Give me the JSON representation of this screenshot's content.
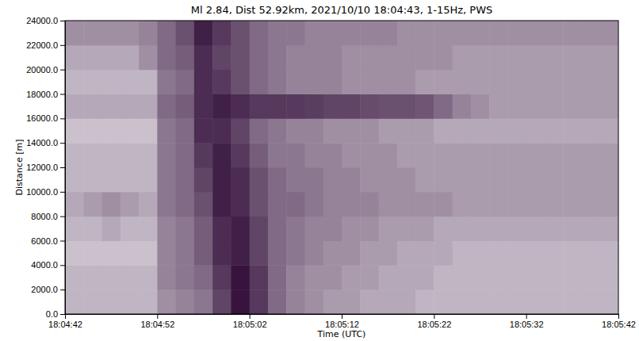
{
  "chart_data": {
    "type": "heatmap",
    "title": "Ml 2.84, Dist 52.92km, 2021/10/10 18:04:43, 1-15Hz, PWS",
    "x_label": "Time (UTC)",
    "y_label": "Distance [m]",
    "xlim": [
      "18:04:42",
      "18:05:42"
    ],
    "xticks": [
      "18:04:42",
      "18:04:52",
      "18:05:02",
      "18:05:12",
      "18:05:22",
      "18:05:32",
      "18:05:42"
    ],
    "ylim": [
      0,
      24000
    ],
    "yticks": [
      {
        "value": 0,
        "label": "0.0"
      },
      {
        "value": 2000,
        "label": "2000.0"
      },
      {
        "value": 4000,
        "label": "4000.0"
      },
      {
        "value": 6000,
        "label": "6000.0"
      },
      {
        "value": 8000,
        "label": "8000.0"
      },
      {
        "value": 10000,
        "label": "10000.0"
      },
      {
        "value": 12000,
        "label": "12000.0"
      },
      {
        "value": 14000,
        "label": "14000.0"
      },
      {
        "value": 16000,
        "label": "16000.0"
      },
      {
        "value": 18000,
        "label": "18000.0"
      },
      {
        "value": 20000,
        "label": "20000.0"
      },
      {
        "value": 22000,
        "label": "22000.0"
      },
      {
        "value": 24000,
        "label": "24000.0"
      }
    ],
    "x": [
      "18:04:42",
      "18:04:44",
      "18:04:46",
      "18:04:48",
      "18:04:50",
      "18:04:52",
      "18:04:54",
      "18:04:56",
      "18:04:58",
      "18:05:00",
      "18:05:02",
      "18:05:04",
      "18:05:06",
      "18:05:08",
      "18:05:10",
      "18:05:12",
      "18:05:14",
      "18:05:16",
      "18:05:18",
      "18:05:20",
      "18:05:22",
      "18:05:24",
      "18:05:26",
      "18:05:28",
      "18:05:30",
      "18:05:32",
      "18:05:34",
      "18:05:36",
      "18:05:38",
      "18:05:40"
    ],
    "y": [
      0,
      2000,
      4000,
      6000,
      8000,
      10000,
      12000,
      14000,
      16000,
      18000,
      20000,
      22000
    ],
    "cells": [
      [
        0.3,
        0.3,
        0.3,
        0.3,
        0.3,
        0.45,
        0.5,
        0.55,
        0.75,
        0.95,
        0.8,
        0.6,
        0.5,
        0.45,
        0.4,
        0.4,
        0.35,
        0.35,
        0.35,
        0.3,
        0.3,
        0.3,
        0.3,
        0.3,
        0.3,
        0.3,
        0.3,
        0.3,
        0.3,
        0.3
      ],
      [
        0.3,
        0.3,
        0.3,
        0.3,
        0.3,
        0.5,
        0.55,
        0.6,
        0.8,
        0.95,
        0.8,
        0.6,
        0.5,
        0.45,
        0.45,
        0.4,
        0.4,
        0.35,
        0.35,
        0.35,
        0.3,
        0.3,
        0.3,
        0.3,
        0.3,
        0.3,
        0.3,
        0.3,
        0.3,
        0.3
      ],
      [
        0.25,
        0.25,
        0.25,
        0.25,
        0.25,
        0.5,
        0.55,
        0.65,
        0.85,
        0.9,
        0.75,
        0.6,
        0.55,
        0.5,
        0.45,
        0.45,
        0.4,
        0.4,
        0.35,
        0.35,
        0.35,
        0.3,
        0.3,
        0.3,
        0.3,
        0.3,
        0.3,
        0.3,
        0.3,
        0.3
      ],
      [
        0.3,
        0.3,
        0.35,
        0.3,
        0.3,
        0.5,
        0.55,
        0.65,
        0.85,
        0.9,
        0.75,
        0.6,
        0.55,
        0.5,
        0.5,
        0.45,
        0.45,
        0.4,
        0.4,
        0.4,
        0.35,
        0.35,
        0.35,
        0.35,
        0.35,
        0.35,
        0.35,
        0.35,
        0.35,
        0.35
      ],
      [
        0.35,
        0.4,
        0.45,
        0.4,
        0.35,
        0.55,
        0.6,
        0.7,
        0.9,
        0.85,
        0.7,
        0.6,
        0.6,
        0.55,
        0.5,
        0.5,
        0.5,
        0.45,
        0.45,
        0.45,
        0.45,
        0.4,
        0.4,
        0.4,
        0.4,
        0.4,
        0.4,
        0.4,
        0.4,
        0.4
      ],
      [
        0.3,
        0.3,
        0.3,
        0.3,
        0.3,
        0.55,
        0.6,
        0.75,
        0.9,
        0.85,
        0.7,
        0.6,
        0.55,
        0.55,
        0.5,
        0.5,
        0.45,
        0.45,
        0.45,
        0.4,
        0.4,
        0.4,
        0.4,
        0.4,
        0.4,
        0.4,
        0.4,
        0.4,
        0.4,
        0.4
      ],
      [
        0.3,
        0.3,
        0.3,
        0.3,
        0.3,
        0.55,
        0.6,
        0.8,
        0.9,
        0.8,
        0.65,
        0.55,
        0.55,
        0.5,
        0.5,
        0.45,
        0.45,
        0.45,
        0.4,
        0.4,
        0.4,
        0.4,
        0.4,
        0.4,
        0.4,
        0.4,
        0.4,
        0.4,
        0.4,
        0.4
      ],
      [
        0.25,
        0.25,
        0.25,
        0.25,
        0.25,
        0.55,
        0.6,
        0.85,
        0.85,
        0.75,
        0.6,
        0.55,
        0.5,
        0.5,
        0.45,
        0.45,
        0.45,
        0.4,
        0.4,
        0.4,
        0.35,
        0.35,
        0.35,
        0.35,
        0.35,
        0.35,
        0.35,
        0.35,
        0.35,
        0.35
      ],
      [
        0.35,
        0.35,
        0.35,
        0.35,
        0.35,
        0.6,
        0.65,
        0.85,
        0.9,
        0.85,
        0.8,
        0.8,
        0.8,
        0.78,
        0.75,
        0.75,
        0.72,
        0.7,
        0.7,
        0.68,
        0.6,
        0.5,
        0.45,
        0.4,
        0.4,
        0.4,
        0.4,
        0.4,
        0.4,
        0.4
      ],
      [
        0.3,
        0.3,
        0.3,
        0.3,
        0.3,
        0.55,
        0.6,
        0.85,
        0.8,
        0.7,
        0.6,
        0.55,
        0.5,
        0.5,
        0.5,
        0.45,
        0.45,
        0.45,
        0.45,
        0.4,
        0.4,
        0.4,
        0.4,
        0.4,
        0.4,
        0.4,
        0.4,
        0.4,
        0.4,
        0.4
      ],
      [
        0.35,
        0.35,
        0.35,
        0.35,
        0.45,
        0.6,
        0.65,
        0.85,
        0.75,
        0.7,
        0.6,
        0.55,
        0.5,
        0.5,
        0.5,
        0.45,
        0.45,
        0.45,
        0.45,
        0.45,
        0.45,
        0.4,
        0.4,
        0.4,
        0.4,
        0.4,
        0.4,
        0.4,
        0.4,
        0.4
      ],
      [
        0.45,
        0.45,
        0.45,
        0.45,
        0.5,
        0.6,
        0.7,
        0.9,
        0.8,
        0.7,
        0.6,
        0.55,
        0.55,
        0.5,
        0.5,
        0.5,
        0.5,
        0.5,
        0.45,
        0.45,
        0.45,
        0.45,
        0.45,
        0.45,
        0.45,
        0.45,
        0.45,
        0.45,
        0.45,
        0.45
      ]
    ]
  }
}
